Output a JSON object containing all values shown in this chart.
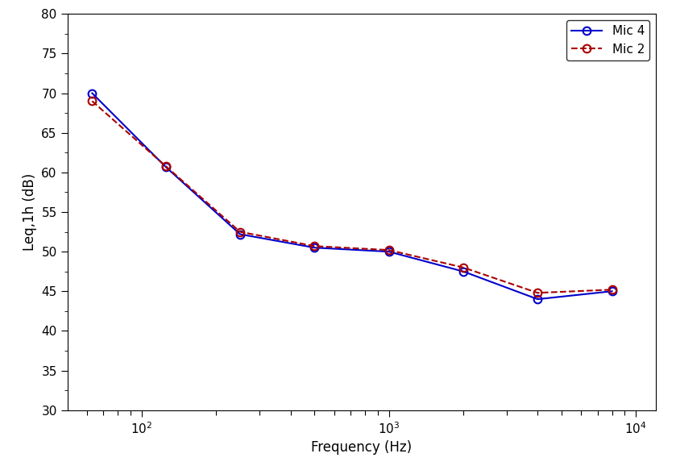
{
  "frequencies": [
    63,
    125,
    250,
    500,
    1000,
    2000,
    4000,
    8000
  ],
  "mic4_values": [
    70.0,
    60.7,
    52.2,
    50.5,
    50.0,
    47.5,
    44.0,
    45.0
  ],
  "mic2_values": [
    69.0,
    60.8,
    52.5,
    50.7,
    50.2,
    48.0,
    44.8,
    45.2
  ],
  "mic4_color": "#0000CC",
  "mic2_color": "#AA0000",
  "mic4_label": "Mic 4",
  "mic2_label": "Mic 2",
  "mic4_linestyle": "-",
  "mic2_linestyle": "--",
  "xlabel": "Frequency (Hz)",
  "ylabel": "Leq,1h (dB)",
  "ylim": [
    30,
    80
  ],
  "xlim_log": [
    1.7,
    4.08
  ],
  "yticks": [
    30,
    35,
    40,
    45,
    50,
    55,
    60,
    65,
    70,
    75,
    80
  ],
  "xticks_major": [
    100,
    1000,
    10000
  ],
  "marker": "o",
  "markersize": 7,
  "linewidth": 1.5,
  "background_color": "#ffffff",
  "legend_loc": "upper right",
  "fontsize": 12,
  "tick_fontsize": 11
}
